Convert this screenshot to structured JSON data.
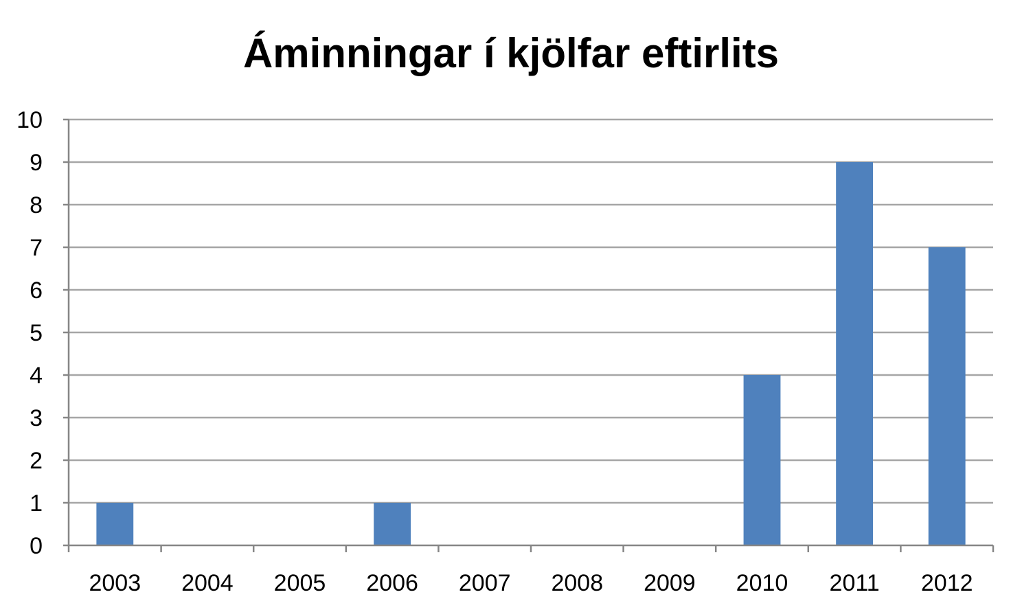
{
  "chart_data": {
    "type": "bar",
    "title": "Áminningar í kjölfar eftirlits",
    "categories": [
      "2003",
      "2004",
      "2005",
      "2006",
      "2007",
      "2008",
      "2009",
      "2010",
      "2011",
      "2012"
    ],
    "values": [
      1,
      0,
      0,
      1,
      0,
      0,
      0,
      4,
      9,
      7
    ],
    "xlabel": "",
    "ylabel": "",
    "ylim": [
      0,
      10
    ],
    "yticks": [
      "0",
      "1",
      "2",
      "3",
      "4",
      "5",
      "6",
      "7",
      "8",
      "9",
      "10"
    ],
    "grid": true,
    "legend": "none",
    "colors": {
      "bar": "#4f81bd",
      "grid": "#a6a6a6",
      "axis": "#868686"
    }
  }
}
